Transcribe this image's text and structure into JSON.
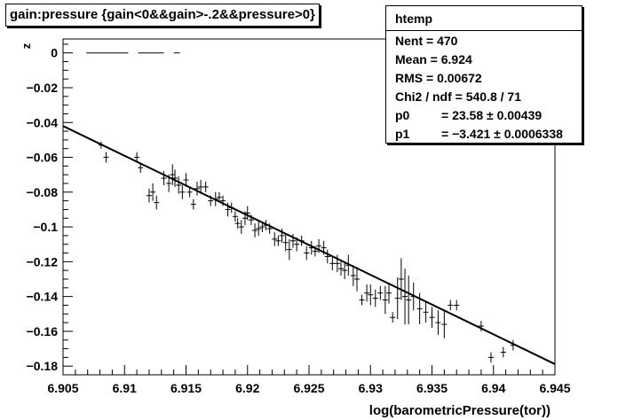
{
  "title": "gain:pressure {gain<0&&gain>-.2&&pressure>0}",
  "stats": {
    "name": "htemp",
    "rows": [
      {
        "label": "Nent = 470",
        "value": ""
      },
      {
        "label": "Mean  =  6.924",
        "value": ""
      },
      {
        "label": "RMS   = 0.00672",
        "value": ""
      },
      {
        "label": "Chi2 / ndf = 540.8 / 71",
        "value": ""
      },
      {
        "label": "p0",
        "value": "= 23.58 ± 0.00439"
      },
      {
        "label": "p1",
        "value": "= −3.421 ± 0.0006338"
      }
    ]
  },
  "chart_data": {
    "type": "scatter",
    "xlabel": "log(barometricPressure(tor))",
    "ylabel": "z",
    "xlim": [
      6.905,
      6.945
    ],
    "ylim": [
      -0.185,
      0.008
    ],
    "xticks": [
      "6.905",
      "6.91",
      "6.915",
      "6.92",
      "6.925",
      "6.93",
      "6.935",
      "6.94",
      "6.945"
    ],
    "yticks": [
      "0",
      "−0.02",
      "−0.04",
      "−0.06",
      "−0.08",
      "−0.1",
      "−0.12",
      "−0.14",
      "−0.16",
      "−0.18"
    ],
    "fit": {
      "p0": 23.58,
      "p1": -3.421,
      "x_range": [
        6.905,
        6.945
      ]
    },
    "points": [
      [
        6.9081,
        -0.053,
        0.002
      ],
      [
        6.9085,
        -0.06,
        0.003
      ],
      [
        6.911,
        -0.06,
        0.003
      ],
      [
        6.9113,
        -0.066,
        0.003
      ],
      [
        6.912,
        -0.082,
        0.004
      ],
      [
        6.9123,
        -0.08,
        0.005
      ],
      [
        6.9126,
        -0.086,
        0.004
      ],
      [
        6.9132,
        -0.072,
        0.004
      ],
      [
        6.9136,
        -0.075,
        0.005
      ],
      [
        6.9139,
        -0.07,
        0.006
      ],
      [
        6.9141,
        -0.072,
        0.005
      ],
      [
        6.9144,
        -0.076,
        0.005
      ],
      [
        6.9147,
        -0.08,
        0.004
      ],
      [
        6.915,
        -0.073,
        0.004
      ],
      [
        6.9153,
        -0.08,
        0.003
      ],
      [
        6.9156,
        -0.087,
        0.003
      ],
      [
        6.9159,
        -0.078,
        0.004
      ],
      [
        6.9162,
        -0.077,
        0.004
      ],
      [
        6.9166,
        -0.077,
        0.003
      ],
      [
        6.917,
        -0.085,
        0.003
      ],
      [
        6.9174,
        -0.084,
        0.004
      ],
      [
        6.9177,
        -0.083,
        0.003
      ],
      [
        6.918,
        -0.085,
        0.003
      ],
      [
        6.9184,
        -0.09,
        0.004
      ],
      [
        6.9187,
        -0.089,
        0.003
      ],
      [
        6.919,
        -0.094,
        0.003
      ],
      [
        6.9192,
        -0.098,
        0.003
      ],
      [
        6.9195,
        -0.1,
        0.004
      ],
      [
        6.9198,
        -0.095,
        0.004
      ],
      [
        6.92,
        -0.092,
        0.004
      ],
      [
        6.9203,
        -0.096,
        0.003
      ],
      [
        6.9206,
        -0.102,
        0.004
      ],
      [
        6.9209,
        -0.101,
        0.004
      ],
      [
        6.9212,
        -0.1,
        0.003
      ],
      [
        6.9215,
        -0.099,
        0.003
      ],
      [
        6.9218,
        -0.101,
        0.003
      ],
      [
        6.9222,
        -0.107,
        0.004
      ],
      [
        6.9225,
        -0.108,
        0.003
      ],
      [
        6.9228,
        -0.105,
        0.004
      ],
      [
        6.9231,
        -0.109,
        0.005
      ],
      [
        6.9234,
        -0.113,
        0.006
      ],
      [
        6.9237,
        -0.108,
        0.004
      ],
      [
        6.924,
        -0.11,
        0.004
      ],
      [
        6.9244,
        -0.108,
        0.003
      ],
      [
        6.9248,
        -0.115,
        0.004
      ],
      [
        6.9252,
        -0.112,
        0.004
      ],
      [
        6.9255,
        -0.114,
        0.003
      ],
      [
        6.9258,
        -0.111,
        0.004
      ],
      [
        6.9262,
        -0.112,
        0.004
      ],
      [
        6.9265,
        -0.117,
        0.004
      ],
      [
        6.9269,
        -0.121,
        0.004
      ],
      [
        6.9273,
        -0.121,
        0.005
      ],
      [
        6.9276,
        -0.124,
        0.004
      ],
      [
        6.9279,
        -0.125,
        0.005
      ],
      [
        6.9282,
        -0.122,
        0.006
      ],
      [
        6.9286,
        -0.128,
        0.006
      ],
      [
        6.9289,
        -0.13,
        0.007
      ],
      [
        6.9293,
        -0.142,
        0.003
      ],
      [
        6.9297,
        -0.138,
        0.005
      ],
      [
        6.93,
        -0.139,
        0.006
      ],
      [
        6.9304,
        -0.141,
        0.005
      ],
      [
        6.9308,
        -0.138,
        0.004
      ],
      [
        6.9312,
        -0.142,
        0.008
      ],
      [
        6.9315,
        -0.138,
        0.006
      ],
      [
        6.9318,
        -0.152,
        0.003
      ],
      [
        6.9322,
        -0.141,
        0.012
      ],
      [
        6.9325,
        -0.13,
        0.012
      ],
      [
        6.9328,
        -0.14,
        0.016
      ],
      [
        6.9331,
        -0.142,
        0.014
      ],
      [
        6.9335,
        -0.14,
        0.008
      ],
      [
        6.934,
        -0.147,
        0.009
      ],
      [
        6.9345,
        -0.149,
        0.006
      ],
      [
        6.935,
        -0.152,
        0.006
      ],
      [
        6.9355,
        -0.155,
        0.007
      ],
      [
        6.936,
        -0.156,
        0.008
      ],
      [
        6.9365,
        -0.145,
        0.003
      ],
      [
        6.937,
        -0.145,
        0.003
      ],
      [
        6.939,
        -0.157,
        0.003
      ],
      [
        6.9398,
        -0.175,
        0.003
      ],
      [
        6.9408,
        -0.172,
        0.003
      ],
      [
        6.9416,
        -0.168,
        0.003
      ]
    ],
    "grid": false,
    "legend_position": "top-right"
  }
}
